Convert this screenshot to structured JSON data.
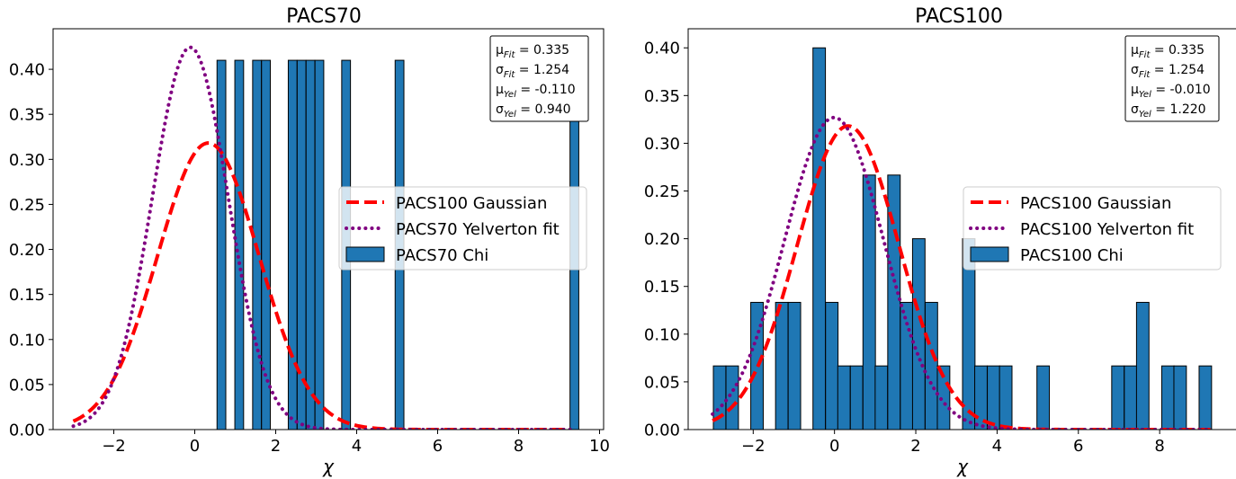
{
  "chart_data": [
    {
      "type": "bar",
      "title": "PACS70",
      "xlabel": "χ",
      "ylabel": "",
      "xlim": [
        -3.5,
        10.1
      ],
      "ylim": [
        0,
        0.445
      ],
      "xticks": [
        -2,
        0,
        2,
        4,
        6,
        8,
        10
      ],
      "xtick_labels": [
        "−2",
        "0",
        "2",
        "4",
        "6",
        "8",
        "10"
      ],
      "yticks": [
        0.0,
        0.05,
        0.1,
        0.15,
        0.2,
        0.25,
        0.3,
        0.35,
        0.4
      ],
      "ytick_labels": [
        "0.00",
        "0.05",
        "0.10",
        "0.15",
        "0.20",
        "0.25",
        "0.30",
        "0.35",
        "0.40"
      ],
      "histogram": {
        "name": "PACS70 Chi",
        "bin_width": 0.217,
        "bins": [
          {
            "left": 0.55,
            "value": 0.41
          },
          {
            "left": 0.99,
            "value": 0.41
          },
          {
            "left": 1.43,
            "value": 0.41
          },
          {
            "left": 1.65,
            "value": 0.41
          },
          {
            "left": 2.31,
            "value": 0.41
          },
          {
            "left": 2.53,
            "value": 0.41
          },
          {
            "left": 2.75,
            "value": 0.41
          },
          {
            "left": 2.97,
            "value": 0.41
          },
          {
            "left": 3.63,
            "value": 0.41
          },
          {
            "left": 4.95,
            "value": 0.41
          },
          {
            "left": 9.27,
            "value": 0.41
          }
        ]
      },
      "lines": [
        {
          "name": "PACS100 Gaussian",
          "kind": "gaussian",
          "mu": 0.335,
          "sigma": 1.254,
          "color": "#ff0000",
          "style": "dashed",
          "x_range": [
            -3,
            9.3
          ]
        },
        {
          "name": "PACS70 Yelverton fit",
          "kind": "gaussian",
          "mu": -0.11,
          "sigma": 0.94,
          "color": "#800080",
          "style": "dotted",
          "x_range": [
            -3,
            9.3
          ]
        }
      ],
      "legend": {
        "location": "center-right"
      },
      "stats_box": {
        "location": "top-right",
        "lines": [
          {
            "base": "μ",
            "sub": "Fit",
            "rest": " = 0.335"
          },
          {
            "base": "σ",
            "sub": "Fit",
            "rest": " = 1.254"
          },
          {
            "base": "μ",
            "sub": "Yel",
            "rest": " = -0.110"
          },
          {
            "base": "σ",
            "sub": "Yel",
            "rest": " = 0.940"
          }
        ]
      }
    },
    {
      "type": "bar",
      "title": "PACS100",
      "xlabel": "χ",
      "ylabel": "",
      "xlim": [
        -3.6,
        9.9
      ],
      "ylim": [
        0,
        0.42
      ],
      "xticks": [
        -2,
        0,
        2,
        4,
        6,
        8
      ],
      "xtick_labels": [
        "−2",
        "0",
        "2",
        "4",
        "6",
        "8"
      ],
      "yticks": [
        0.0,
        0.05,
        0.1,
        0.15,
        0.2,
        0.25,
        0.3,
        0.35,
        0.4
      ],
      "ytick_labels": [
        "0.00",
        "0.05",
        "0.10",
        "0.15",
        "0.20",
        "0.25",
        "0.30",
        "0.35",
        "0.40"
      ],
      "histogram": {
        "name": "PACS100 Chi",
        "bin_width": 0.307,
        "bins": [
          {
            "left": -2.98,
            "value": 0.0667
          },
          {
            "left": -2.67,
            "value": 0.0667
          },
          {
            "left": -2.06,
            "value": 0.1333
          },
          {
            "left": -1.45,
            "value": 0.1333
          },
          {
            "left": -1.14,
            "value": 0.1333
          },
          {
            "left": -0.53,
            "value": 0.4
          },
          {
            "left": -0.22,
            "value": 0.1333
          },
          {
            "left": 0.08,
            "value": 0.0667
          },
          {
            "left": 0.39,
            "value": 0.0667
          },
          {
            "left": 0.7,
            "value": 0.2667
          },
          {
            "left": 1.0,
            "value": 0.0667
          },
          {
            "left": 1.31,
            "value": 0.2667
          },
          {
            "left": 1.62,
            "value": 0.1333
          },
          {
            "left": 1.92,
            "value": 0.2
          },
          {
            "left": 2.23,
            "value": 0.1333
          },
          {
            "left": 2.53,
            "value": 0.0667
          },
          {
            "left": 3.15,
            "value": 0.2
          },
          {
            "left": 3.45,
            "value": 0.0667
          },
          {
            "left": 3.76,
            "value": 0.0667
          },
          {
            "left": 4.06,
            "value": 0.0667
          },
          {
            "left": 4.98,
            "value": 0.0667
          },
          {
            "left": 6.82,
            "value": 0.0667
          },
          {
            "left": 7.13,
            "value": 0.0667
          },
          {
            "left": 7.43,
            "value": 0.1333
          },
          {
            "left": 8.05,
            "value": 0.0667
          },
          {
            "left": 8.35,
            "value": 0.0667
          },
          {
            "left": 8.97,
            "value": 0.0667
          }
        ]
      },
      "lines": [
        {
          "name": "PACS100 Gaussian",
          "kind": "gaussian",
          "mu": 0.335,
          "sigma": 1.254,
          "color": "#ff0000",
          "style": "dashed",
          "x_range": [
            -3,
            9.3
          ]
        },
        {
          "name": "PACS100 Yelverton fit",
          "kind": "gaussian",
          "mu": -0.01,
          "sigma": 1.22,
          "color": "#800080",
          "style": "dotted",
          "x_range": [
            -3,
            9.3
          ]
        }
      ],
      "legend": {
        "location": "center-right"
      },
      "stats_box": {
        "location": "top-right",
        "lines": [
          {
            "base": "μ",
            "sub": "Fit",
            "rest": " = 0.335"
          },
          {
            "base": "σ",
            "sub": "Fit",
            "rest": " = 1.254"
          },
          {
            "base": "μ",
            "sub": "Yel",
            "rest": " = -0.010"
          },
          {
            "base": "σ",
            "sub": "Yel",
            "rest": " = 1.220"
          }
        ]
      }
    }
  ],
  "colors": {
    "bar_fill": "#1f77b4",
    "bar_edge": "#000000",
    "gaussian": "#ff0000",
    "yelverton": "#800080"
  }
}
